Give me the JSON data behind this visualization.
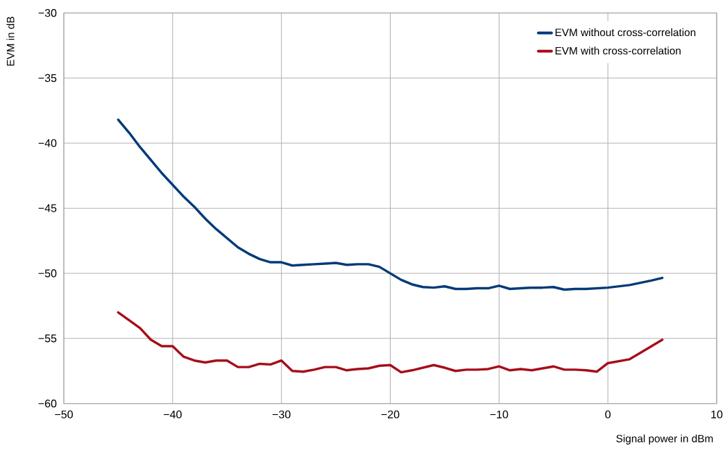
{
  "chart_data": {
    "type": "line",
    "xlabel": "Signal power in dBm",
    "ylabel": "EVM in dB",
    "xlim": [
      -50,
      10
    ],
    "ylim": [
      -60,
      -30
    ],
    "xticks": [
      {
        "value": -50,
        "label": "−50"
      },
      {
        "value": -40,
        "label": "−40"
      },
      {
        "value": -30,
        "label": "−30"
      },
      {
        "value": -20,
        "label": "−20"
      },
      {
        "value": -10,
        "label": "−10"
      },
      0,
      10
    ],
    "yticks": [
      {
        "value": -60,
        "label": "−60"
      },
      {
        "value": -55,
        "label": "−55"
      },
      {
        "value": -50,
        "label": "−50"
      },
      {
        "value": -45,
        "label": "−45"
      },
      {
        "value": -40,
        "label": "−40"
      },
      {
        "value": -35,
        "label": "−35"
      },
      {
        "value": -30,
        "label": "−30"
      }
    ],
    "grid": true,
    "legend": "top right",
    "marker": "none",
    "line_style": "solid",
    "series": [
      {
        "name": "EVM without cross-correlation",
        "color": "#003a78",
        "x": [
          -45,
          -44,
          -43,
          -42,
          -41,
          -40,
          -39,
          -38,
          -37,
          -36,
          -35,
          -34,
          -33,
          -32,
          -31,
          -30,
          -29,
          -28,
          -27,
          -26,
          -25,
          -24,
          -23,
          -22,
          -21,
          -20,
          -19,
          -18,
          -17,
          -16,
          -15,
          -14,
          -13,
          -12,
          -11,
          -10,
          -9,
          -8,
          -7,
          -6,
          -5,
          -4,
          -3,
          -2,
          0,
          2,
          4,
          5
        ],
        "values": [
          -38.2,
          -39.2,
          -40.3,
          -41.3,
          -42.3,
          -43.2,
          -44.1,
          -44.9,
          -45.8,
          -46.6,
          -47.3,
          -48.0,
          -48.5,
          -48.9,
          -49.15,
          -49.15,
          -49.4,
          -49.35,
          -49.3,
          -49.25,
          -49.2,
          -49.35,
          -49.3,
          -49.3,
          -49.5,
          -50.0,
          -50.5,
          -50.85,
          -51.05,
          -51.1,
          -51.0,
          -51.2,
          -51.2,
          -51.15,
          -51.15,
          -50.95,
          -51.2,
          -51.15,
          -51.1,
          -51.1,
          -51.05,
          -51.25,
          -51.2,
          -51.2,
          -51.1,
          -50.9,
          -50.55,
          -50.35
        ]
      },
      {
        "name": "EVM with cross-correlation",
        "color": "#a50e1a",
        "x": [
          -45,
          -44,
          -43,
          -42,
          -41,
          -40,
          -39,
          -38,
          -37,
          -36,
          -35,
          -34,
          -33,
          -32,
          -31,
          -30,
          -29,
          -28,
          -27,
          -26,
          -25,
          -24,
          -23,
          -22,
          -21,
          -20,
          -19,
          -18,
          -17,
          -16,
          -15,
          -14,
          -13,
          -12,
          -11,
          -10,
          -9,
          -8,
          -7,
          -6,
          -5,
          -4,
          -3,
          -2,
          -1,
          0,
          2,
          5
        ],
        "values": [
          -53.0,
          -53.6,
          -54.2,
          -55.1,
          -55.6,
          -55.6,
          -56.4,
          -56.7,
          -56.85,
          -56.7,
          -56.7,
          -57.2,
          -57.2,
          -56.95,
          -57.0,
          -56.7,
          -57.5,
          -57.55,
          -57.4,
          -57.2,
          -57.2,
          -57.45,
          -57.35,
          -57.3,
          -57.1,
          -57.05,
          -57.6,
          -57.45,
          -57.25,
          -57.05,
          -57.25,
          -57.5,
          -57.4,
          -57.4,
          -57.35,
          -57.15,
          -57.45,
          -57.35,
          -57.45,
          -57.3,
          -57.15,
          -57.4,
          -57.4,
          -57.45,
          -57.55,
          -56.9,
          -56.6,
          -55.1
        ]
      }
    ]
  }
}
